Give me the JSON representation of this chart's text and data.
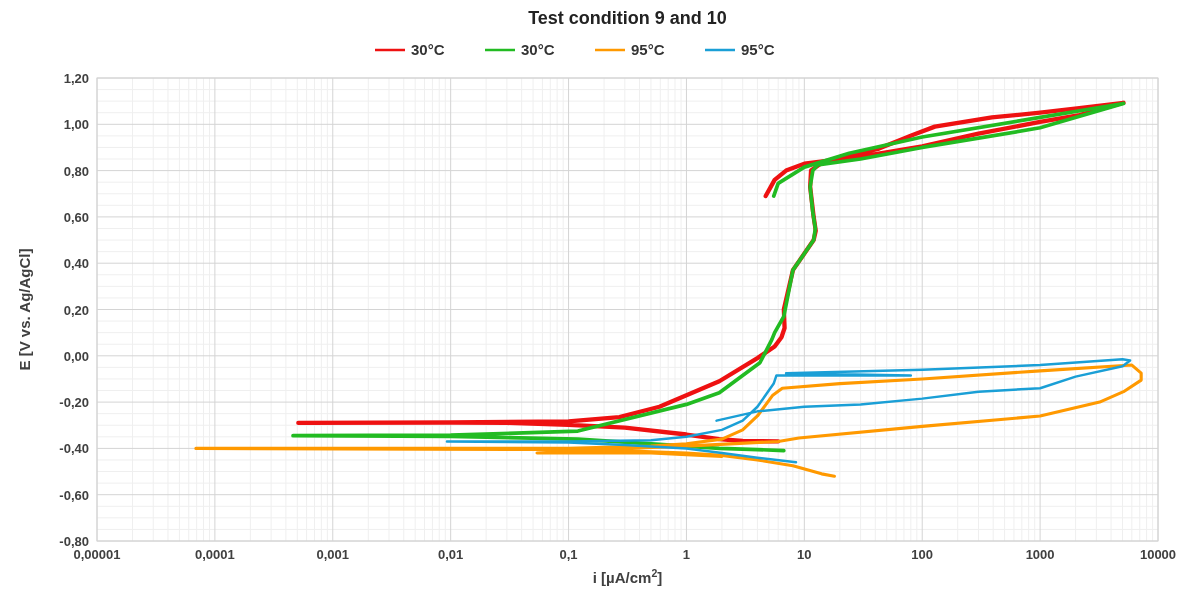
{
  "chart_data": {
    "type": "line",
    "title": "Test condition 9 and 10",
    "xlabel": "i [µA/cm$^{2}$]",
    "ylabel": "E [V vs. Ag/AgCl]",
    "log": "x",
    "grid": true,
    "legend": "top",
    "marker": "none",
    "line_style": "solid",
    "xlim": [
      1e-05,
      10000
    ],
    "ylim": [
      -0.8,
      1.2
    ],
    "xticks": [
      {
        "value": 1e-05,
        "label": "0,00001"
      },
      {
        "value": 0.0001,
        "label": "0,0001"
      },
      {
        "value": 0.001,
        "label": "0,001"
      },
      {
        "value": 0.01,
        "label": "0,01"
      },
      {
        "value": 0.1,
        "label": "0,1"
      },
      1,
      10,
      100,
      1000,
      10000
    ],
    "yticks": [
      {
        "value": -0.8,
        "label": "-0,80"
      },
      {
        "value": -0.6,
        "label": "-0,60"
      },
      {
        "value": -0.4,
        "label": "-0,40"
      },
      {
        "value": -0.2,
        "label": "-0,20"
      },
      {
        "value": 0,
        "label": "0,00"
      },
      {
        "value": 0.2,
        "label": "0,20"
      },
      {
        "value": 0.4,
        "label": "0,40"
      },
      {
        "value": 0.6,
        "label": "0,60"
      },
      {
        "value": 0.8,
        "label": "0,80"
      },
      {
        "value": 1,
        "label": "1,00"
      },
      {
        "value": 1.2,
        "label": "1,20"
      }
    ],
    "series": [
      {
        "name": "30°C",
        "color": "#ee1111",
        "x": [
          6.0,
          3,
          1.9,
          1,
          0.3,
          0.1,
          0.03,
          0.01,
          0.00051,
          0.01,
          0.1,
          0.27,
          0.59,
          1.0,
          1.9,
          4.0,
          5.6,
          6.4,
          6.8,
          6.7,
          8.0,
          12.0,
          12.5,
          12.0,
          11.2,
          11.4,
          13.7,
          24,
          43,
          84,
          128,
          390,
          1000,
          2150,
          5100,
          2150,
          1000,
          300,
          100,
          30,
          10,
          7,
          5.6,
          4.7
        ],
        "values": [
          -0.37,
          -0.368,
          -0.36,
          -0.34,
          -0.31,
          -0.298,
          -0.29,
          -0.289,
          -0.29,
          -0.288,
          -0.283,
          -0.265,
          -0.22,
          -0.17,
          -0.11,
          -0.01,
          0.04,
          0.08,
          0.12,
          0.2,
          0.37,
          0.5,
          0.54,
          0.6,
          0.73,
          0.8,
          0.83,
          0.865,
          0.895,
          0.955,
          0.99,
          1.03,
          1.05,
          1.07,
          1.093,
          1.04,
          1.01,
          0.96,
          0.905,
          0.86,
          0.83,
          0.8,
          0.76,
          0.69
        ]
      },
      {
        "name": "30°C",
        "color": "#22bb22",
        "x": [
          6.7,
          4,
          1.9,
          1,
          0.12,
          0.01,
          0.00046,
          0.01,
          0.12,
          1,
          1.9,
          4.2,
          5.3,
          5.6,
          6.7,
          8.0,
          12,
          12.4,
          11.8,
          11.2,
          11.8,
          13,
          30,
          100,
          300,
          1000,
          5100,
          1000,
          100,
          24,
          10,
          6,
          5.5
        ],
        "values": [
          -0.41,
          -0.405,
          -0.4,
          -0.39,
          -0.36,
          -0.348,
          -0.345,
          -0.343,
          -0.325,
          -0.21,
          -0.16,
          -0.03,
          0.07,
          0.1,
          0.17,
          0.37,
          0.5,
          0.55,
          0.62,
          0.73,
          0.8,
          0.825,
          0.85,
          0.9,
          0.94,
          0.985,
          1.09,
          1.03,
          0.945,
          0.875,
          0.815,
          0.745,
          0.69
        ]
      },
      {
        "name": "95°C",
        "color": "#ff9900",
        "x": [
          18,
          14,
          8,
          4,
          2,
          1,
          0.3,
          0.1,
          6.9e-05,
          0.1,
          0.5,
          1,
          2,
          3,
          4,
          5.4,
          6.5,
          20,
          100,
          1000,
          6000,
          7200,
          7200,
          5100,
          3200,
          1000,
          100,
          9,
          6,
          1,
          0.3,
          0.054,
          0.5,
          2
        ],
        "values": [
          -0.52,
          -0.51,
          -0.475,
          -0.45,
          -0.43,
          -0.42,
          -0.41,
          -0.405,
          -0.4,
          -0.4,
          -0.39,
          -0.38,
          -0.36,
          -0.32,
          -0.26,
          -0.17,
          -0.14,
          -0.12,
          -0.1,
          -0.065,
          -0.04,
          -0.075,
          -0.105,
          -0.155,
          -0.2,
          -0.26,
          -0.305,
          -0.355,
          -0.37,
          -0.39,
          -0.4,
          -0.42,
          -0.42,
          -0.435
        ]
      },
      {
        "name": "95°C",
        "color": "#1a9fd6",
        "x": [
          8.5,
          4,
          2,
          1,
          0.3,
          0.1,
          0.0093,
          0.1,
          0.5,
          1,
          2,
          3,
          4,
          5.5,
          5.8,
          80,
          7,
          100,
          1000,
          5000,
          5800,
          5000,
          2000,
          1000,
          300,
          100,
          30,
          10,
          4,
          1.8
        ],
        "values": [
          -0.46,
          -0.44,
          -0.42,
          -0.4,
          -0.385,
          -0.375,
          -0.37,
          -0.37,
          -0.365,
          -0.35,
          -0.32,
          -0.28,
          -0.22,
          -0.12,
          -0.085,
          -0.085,
          -0.075,
          -0.06,
          -0.04,
          -0.015,
          -0.02,
          -0.045,
          -0.09,
          -0.14,
          -0.155,
          -0.185,
          -0.21,
          -0.22,
          -0.24,
          -0.28
        ]
      }
    ]
  }
}
